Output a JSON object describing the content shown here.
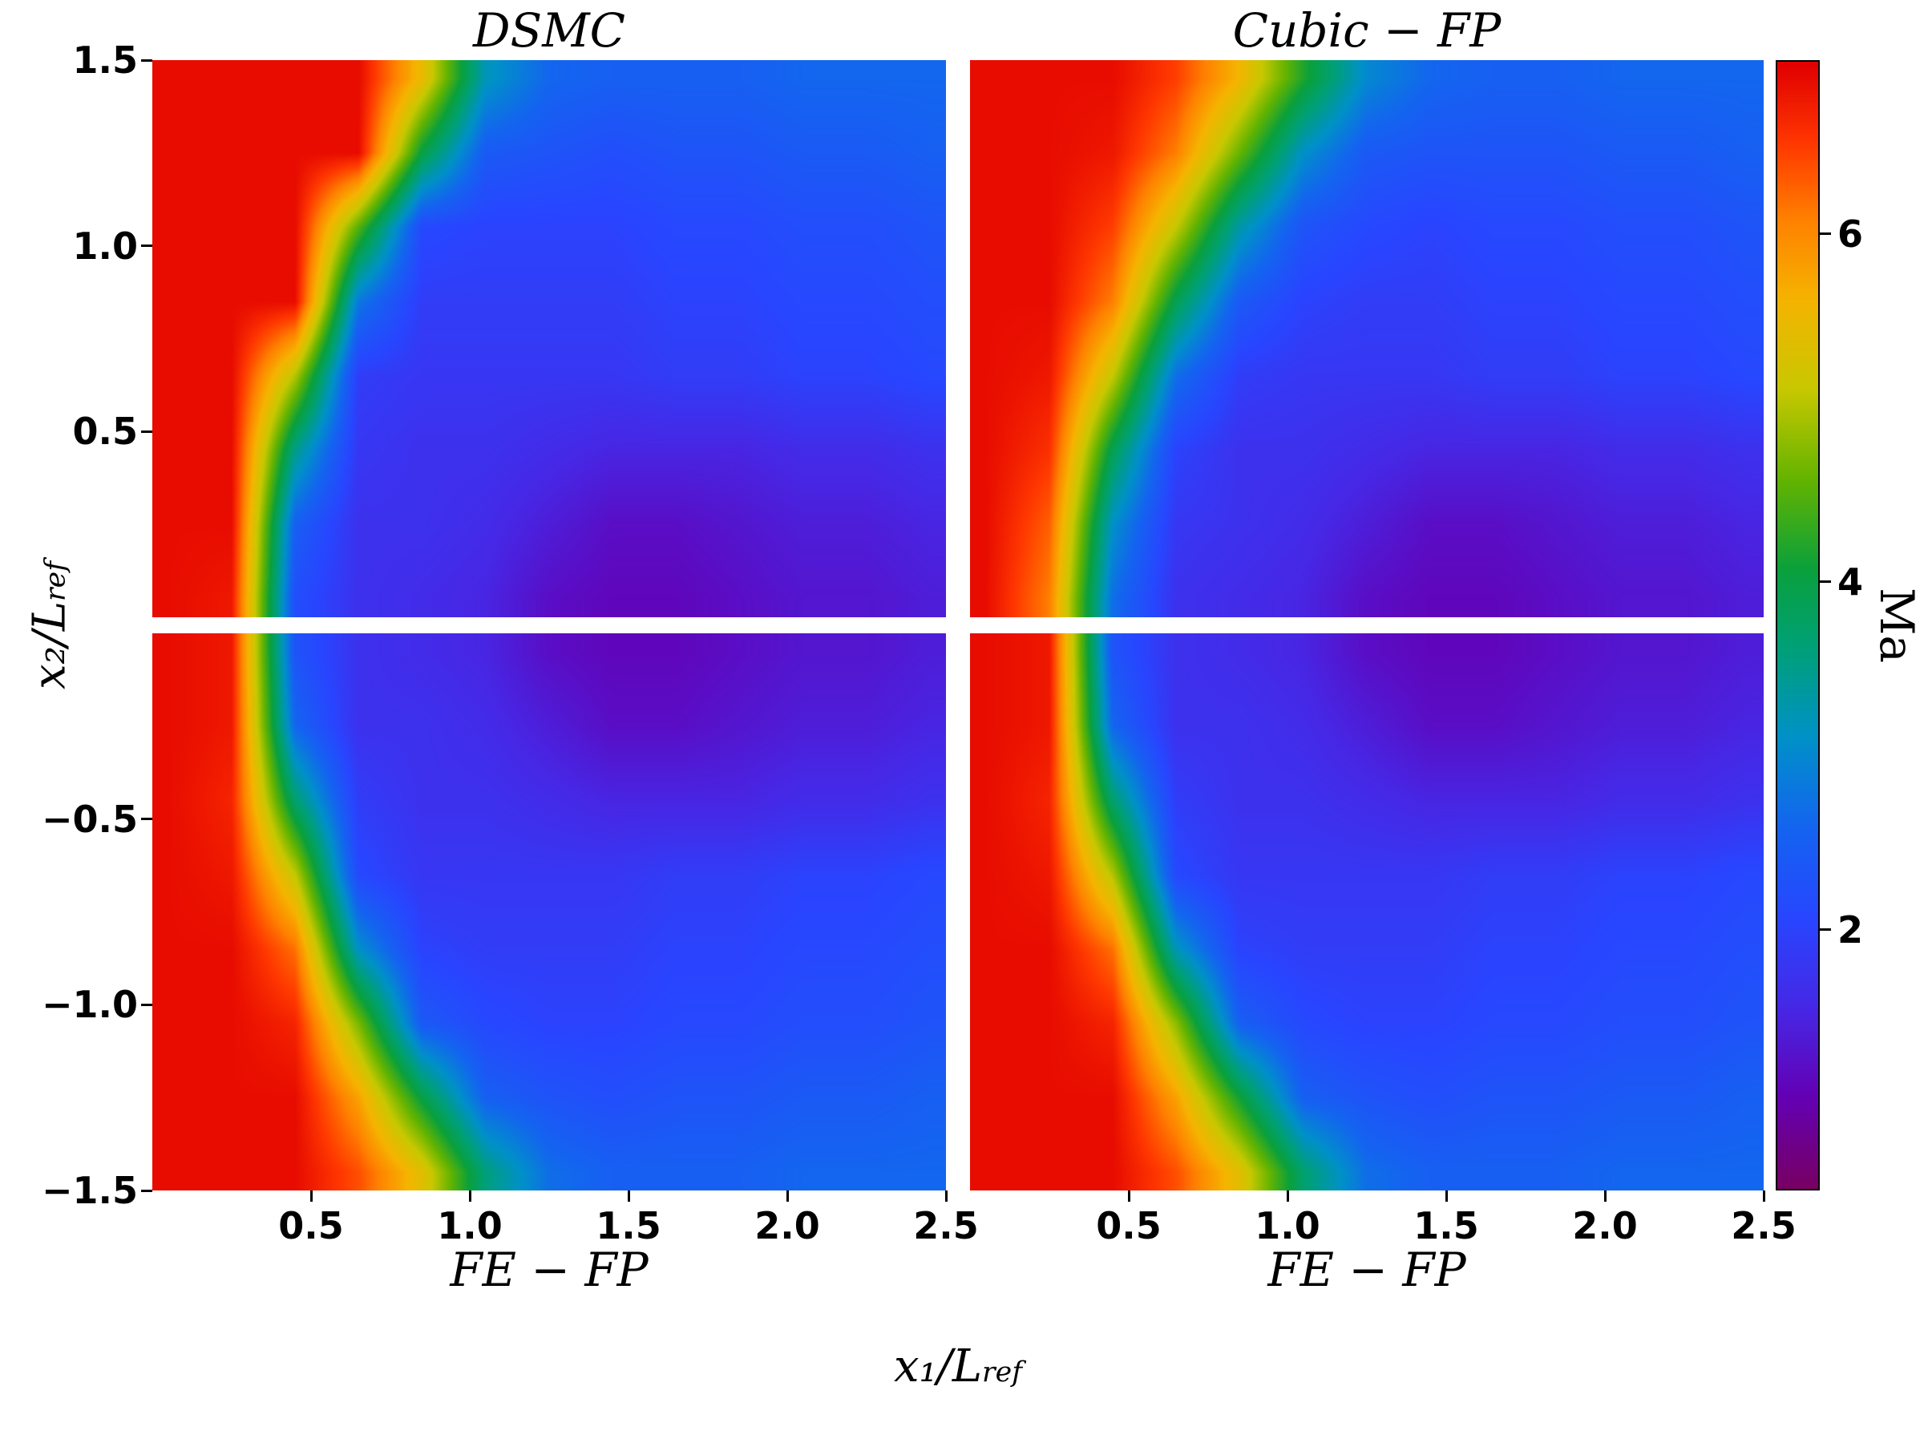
{
  "chart_data": {
    "type": "heatmap",
    "description": "Mach number field of hypersonic flow with curved bow shock; four panels comparing methods",
    "x_axis": {
      "label_main": "x₁/L",
      "label_sub": "ref",
      "tick_labels": [
        "0.5",
        "1.0",
        "1.5",
        "2.0",
        "2.5"
      ],
      "tick_values": [
        0.5,
        1.0,
        1.5,
        2.0,
        2.5
      ],
      "range": [
        0,
        2.5
      ]
    },
    "y_axis": {
      "label_main": "x₂/L",
      "label_sub": "ref",
      "top": {
        "tick_labels": [
          "1.5",
          "1.0",
          "0.5"
        ],
        "tick_values": [
          1.5,
          1.0,
          0.5
        ],
        "range": [
          0,
          1.5
        ]
      },
      "bottom": {
        "tick_labels": [
          "−0.5",
          "−1.0",
          "−1.5"
        ],
        "tick_values": [
          -0.5,
          -1.0,
          -1.5
        ],
        "range": [
          -1.5,
          0
        ]
      }
    },
    "colorbar": {
      "label": "Ma",
      "tick_labels": [
        "6",
        "4",
        "2"
      ],
      "tick_values": [
        6,
        4,
        2
      ],
      "vmin": 0.5,
      "vmax": 7.0,
      "stops": [
        [
          0.0,
          "#780064"
        ],
        [
          0.08,
          "#6400b4"
        ],
        [
          0.16,
          "#4628e6"
        ],
        [
          0.24,
          "#2846ff"
        ],
        [
          0.32,
          "#1464f0"
        ],
        [
          0.4,
          "#0091c8"
        ],
        [
          0.48,
          "#00a078"
        ],
        [
          0.55,
          "#0aa03c"
        ],
        [
          0.63,
          "#64b400"
        ],
        [
          0.71,
          "#c8c800"
        ],
        [
          0.79,
          "#f5b400"
        ],
        [
          0.86,
          "#ff8200"
        ],
        [
          0.93,
          "#ff3700"
        ],
        [
          1.0,
          "#e10000"
        ]
      ]
    },
    "panels": [
      {
        "id": "dsmc",
        "title": "DSMC",
        "position": "top-left",
        "extent": {
          "x": [
            0,
            2.5
          ],
          "y": [
            0,
            1.5
          ]
        },
        "grid": {
          "x0": 0.05,
          "dx": 0.2,
          "y0": 1.45,
          "dy": -0.2
        },
        "values": [
          [
            6.9,
            6.9,
            6.9,
            6.9,
            5.5,
            3.2,
            2.6,
            2.5,
            2.5,
            2.5,
            2.6,
            2.6,
            2.6
          ],
          [
            6.9,
            6.9,
            6.9,
            6.9,
            4.0,
            2.4,
            2.3,
            2.2,
            2.3,
            2.3,
            2.4,
            2.4,
            2.5
          ],
          [
            6.9,
            6.9,
            6.9,
            4.5,
            2.1,
            2.0,
            2.0,
            2.0,
            2.1,
            2.1,
            2.2,
            2.2,
            2.3
          ],
          [
            6.9,
            6.9,
            6.9,
            2.8,
            1.9,
            1.9,
            1.9,
            1.9,
            2.0,
            2.0,
            2.1,
            2.1,
            2.2
          ],
          [
            6.9,
            6.9,
            5.0,
            1.9,
            1.8,
            1.8,
            1.8,
            1.8,
            1.9,
            1.9,
            2.0,
            2.0,
            2.1
          ],
          [
            6.9,
            6.9,
            3.5,
            1.8,
            1.7,
            1.7,
            1.6,
            1.5,
            1.5,
            1.5,
            1.6,
            1.6,
            1.7
          ],
          [
            6.9,
            6.9,
            2.5,
            1.7,
            1.7,
            1.6,
            1.4,
            1.2,
            1.2,
            1.3,
            1.4,
            1.4,
            1.5
          ],
          [
            6.9,
            6.8,
            2.2,
            1.7,
            1.6,
            1.5,
            1.2,
            1.1,
            1.1,
            1.2,
            1.3,
            1.3,
            1.4
          ]
        ]
      },
      {
        "id": "cubic-fp",
        "title": "Cubic − FP",
        "position": "top-right",
        "extent": {
          "x": [
            0,
            2.5
          ],
          "y": [
            0,
            1.5
          ]
        },
        "grid": {
          "x0": 0.05,
          "dx": 0.2,
          "y0": 1.45,
          "dy": -0.2
        },
        "values": [
          [
            6.9,
            6.9,
            6.9,
            6.5,
            5.6,
            4.2,
            3.0,
            2.6,
            2.5,
            2.5,
            2.6,
            2.6,
            2.6
          ],
          [
            6.9,
            6.9,
            6.8,
            6.1,
            4.6,
            3.1,
            2.4,
            2.3,
            2.3,
            2.3,
            2.4,
            2.4,
            2.5
          ],
          [
            6.9,
            6.9,
            6.5,
            5.1,
            3.3,
            2.3,
            2.1,
            2.0,
            2.1,
            2.1,
            2.2,
            2.2,
            2.3
          ],
          [
            6.9,
            6.9,
            6.1,
            3.9,
            2.4,
            2.0,
            1.9,
            1.9,
            2.0,
            2.0,
            2.1,
            2.1,
            2.2
          ],
          [
            6.9,
            6.8,
            5.1,
            2.7,
            1.9,
            1.8,
            1.8,
            1.8,
            1.9,
            1.9,
            2.0,
            2.0,
            2.1
          ],
          [
            6.9,
            6.6,
            3.9,
            2.0,
            1.7,
            1.7,
            1.6,
            1.5,
            1.5,
            1.5,
            1.6,
            1.6,
            1.7
          ],
          [
            6.9,
            6.3,
            3.1,
            1.8,
            1.7,
            1.6,
            1.4,
            1.2,
            1.2,
            1.3,
            1.4,
            1.4,
            1.5
          ],
          [
            6.9,
            6.1,
            2.7,
            1.7,
            1.6,
            1.5,
            1.2,
            1.1,
            1.1,
            1.2,
            1.3,
            1.3,
            1.4
          ]
        ]
      },
      {
        "id": "fe-fp-left",
        "title": "FE − FP",
        "position": "bottom-left",
        "extent": {
          "x": [
            0,
            2.5
          ],
          "y": [
            -1.5,
            0
          ]
        },
        "grid": {
          "x0": 0.05,
          "dx": 0.2,
          "y0": -0.05,
          "dy": -0.2
        },
        "values": [
          [
            6.9,
            6.8,
            2.3,
            1.7,
            1.6,
            1.5,
            1.2,
            1.1,
            1.1,
            1.2,
            1.3,
            1.3,
            1.4
          ],
          [
            6.9,
            6.8,
            2.6,
            1.7,
            1.7,
            1.6,
            1.4,
            1.2,
            1.2,
            1.3,
            1.4,
            1.4,
            1.5
          ],
          [
            6.9,
            6.7,
            3.7,
            1.9,
            1.7,
            1.7,
            1.6,
            1.5,
            1.5,
            1.5,
            1.6,
            1.6,
            1.7
          ],
          [
            6.9,
            6.8,
            5.1,
            2.1,
            1.8,
            1.8,
            1.8,
            1.8,
            1.9,
            1.9,
            2.0,
            2.0,
            2.1
          ],
          [
            6.9,
            6.9,
            6.2,
            3.1,
            2.0,
            1.9,
            1.9,
            1.9,
            2.0,
            2.0,
            2.1,
            2.1,
            2.2
          ],
          [
            6.9,
            6.9,
            6.7,
            4.7,
            2.4,
            2.1,
            2.0,
            2.0,
            2.1,
            2.1,
            2.2,
            2.2,
            2.3
          ],
          [
            6.9,
            6.9,
            6.9,
            5.8,
            4.0,
            2.5,
            2.3,
            2.2,
            2.3,
            2.3,
            2.4,
            2.4,
            2.5
          ],
          [
            6.9,
            6.9,
            6.9,
            6.4,
            5.4,
            3.6,
            2.7,
            2.5,
            2.5,
            2.5,
            2.6,
            2.6,
            2.6
          ]
        ]
      },
      {
        "id": "fe-fp-right",
        "title": "FE − FP",
        "position": "bottom-right",
        "extent": {
          "x": [
            0,
            2.5
          ],
          "y": [
            -1.5,
            0
          ]
        },
        "grid": {
          "x0": 0.05,
          "dx": 0.2,
          "y0": -0.05,
          "dy": -0.2
        },
        "values": [
          [
            6.9,
            6.8,
            2.3,
            1.7,
            1.6,
            1.5,
            1.2,
            1.1,
            1.1,
            1.2,
            1.3,
            1.3,
            1.4
          ],
          [
            6.9,
            6.8,
            2.6,
            1.7,
            1.7,
            1.6,
            1.4,
            1.2,
            1.2,
            1.3,
            1.4,
            1.4,
            1.5
          ],
          [
            6.9,
            6.7,
            3.7,
            1.9,
            1.7,
            1.7,
            1.6,
            1.5,
            1.5,
            1.5,
            1.6,
            1.6,
            1.7
          ],
          [
            6.9,
            6.8,
            5.0,
            2.1,
            1.8,
            1.8,
            1.8,
            1.8,
            1.9,
            1.9,
            2.0,
            2.0,
            2.1
          ],
          [
            6.9,
            6.9,
            6.2,
            3.2,
            2.0,
            1.9,
            1.9,
            1.9,
            2.0,
            2.0,
            2.1,
            2.1,
            2.2
          ],
          [
            6.9,
            6.9,
            6.7,
            4.8,
            2.5,
            2.1,
            2.0,
            2.0,
            2.1,
            2.1,
            2.2,
            2.2,
            2.3
          ],
          [
            6.9,
            6.9,
            6.9,
            5.8,
            4.1,
            2.5,
            2.3,
            2.2,
            2.3,
            2.3,
            2.4,
            2.4,
            2.5
          ],
          [
            6.9,
            6.9,
            6.9,
            6.4,
            5.4,
            3.7,
            2.7,
            2.5,
            2.5,
            2.5,
            2.6,
            2.6,
            2.6
          ]
        ]
      }
    ]
  }
}
